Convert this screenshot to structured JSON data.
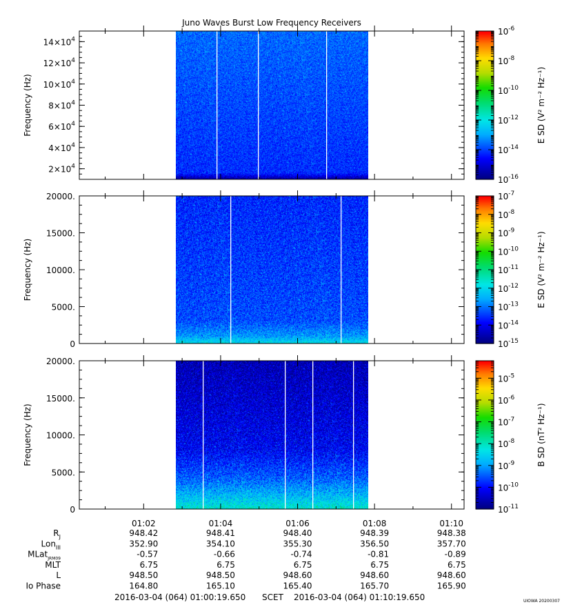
{
  "title": "Juno Waves Burst Low Frequency Receivers",
  "colors": {
    "background": "#ffffff",
    "axis": "#000000",
    "data_gap": "#ffffff"
  },
  "chart_data": [
    {
      "type": "heatmap",
      "panel": 1,
      "ylabel": "Frequency (Hz)",
      "ylim": [
        10000,
        150000
      ],
      "yticks": [
        {
          "value": 20000,
          "mant": "2×10",
          "exp": "4"
        },
        {
          "value": 40000,
          "mant": "4×10",
          "exp": "4"
        },
        {
          "value": 60000,
          "mant": "6×10",
          "exp": "4"
        },
        {
          "value": 80000,
          "mant": "8×10",
          "exp": "4"
        },
        {
          "value": 100000,
          "mant": "10×10",
          "exp": "4"
        },
        {
          "value": 120000,
          "mant": "12×10",
          "exp": "4"
        },
        {
          "value": 140000,
          "mant": "14×10",
          "exp": "4"
        }
      ],
      "xlim": [
        "01:00:19.650",
        "01:10:19.650"
      ],
      "data_time_range": [
        "01:02:50",
        "01:07:50"
      ],
      "gaps": [
        "01:03:54",
        "01:04:58",
        "01:06:45"
      ],
      "colorbar": {
        "label": "E SD (V² m⁻² Hz⁻¹)",
        "scale": "log",
        "range_exp": [
          -16,
          -6
        ],
        "ticks": [
          -16,
          -14,
          -12,
          -10,
          -8,
          -6
        ]
      },
      "intensity_profile": [
        {
          "f": 0.0,
          "exp": -15.6
        },
        {
          "f": 0.04,
          "exp": -14.2
        },
        {
          "f": 1.0,
          "exp": -13.6
        }
      ]
    },
    {
      "type": "heatmap",
      "panel": 2,
      "ylabel": "Frequency (Hz)",
      "ylim": [
        0,
        20000
      ],
      "yticks": [
        {
          "value": 0,
          "label": "0"
        },
        {
          "value": 5000,
          "label": "5000."
        },
        {
          "value": 10000,
          "label": "10000."
        },
        {
          "value": 15000,
          "label": "15000."
        },
        {
          "value": 20000,
          "label": "20000."
        }
      ],
      "xlim": [
        "01:00:19.650",
        "01:10:19.650"
      ],
      "data_time_range": [
        "01:02:50",
        "01:07:50"
      ],
      "gaps": [
        "01:04:15",
        "01:07:07"
      ],
      "colorbar": {
        "label": "E SD (V² m⁻² Hz⁻¹)",
        "scale": "log",
        "range_exp": [
          -15,
          -7
        ],
        "ticks": [
          -15,
          -14,
          -13,
          -12,
          -11,
          -10,
          -9,
          -8,
          -7
        ]
      },
      "intensity_profile": [
        {
          "f": 0.0,
          "exp": -11.9
        },
        {
          "f": 0.05,
          "exp": -12.7
        },
        {
          "f": 0.15,
          "exp": -13.3
        },
        {
          "f": 1.0,
          "exp": -13.6
        }
      ]
    },
    {
      "type": "heatmap",
      "panel": 3,
      "ylabel": "Frequency (Hz)",
      "ylim": [
        0,
        20000
      ],
      "yticks": [
        {
          "value": 0,
          "label": "0"
        },
        {
          "value": 5000,
          "label": "5000."
        },
        {
          "value": 10000,
          "label": "10000."
        },
        {
          "value": 15000,
          "label": "15000."
        },
        {
          "value": 20000,
          "label": "20000."
        }
      ],
      "xlim": [
        "01:00:19.650",
        "01:10:19.650"
      ],
      "data_time_range": [
        "01:02:50",
        "01:07:50"
      ],
      "gaps": [
        "01:03:32",
        "01:05:40",
        "01:06:23",
        "01:07:27"
      ],
      "colorbar": {
        "label": "B SD (nT² Hz⁻¹)",
        "scale": "log",
        "range_exp": [
          -11,
          -4.2
        ],
        "ticks": [
          -11,
          -10,
          -9,
          -8,
          -7,
          -6,
          -5
        ]
      },
      "intensity_profile": [
        {
          "f": 0.0,
          "exp": -8.1
        },
        {
          "f": 0.08,
          "exp": -8.7
        },
        {
          "f": 0.2,
          "exp": -9.4
        },
        {
          "f": 0.4,
          "exp": -10.1
        },
        {
          "f": 1.0,
          "exp": -10.6
        }
      ]
    }
  ],
  "xaxis": {
    "time_ticks": [
      "01:02",
      "01:04",
      "01:06",
      "01:08",
      "01:10"
    ],
    "ephemeris": [
      {
        "label": "R",
        "sub": "J",
        "values": [
          "948.42",
          "948.41",
          "948.40",
          "948.39",
          "948.38"
        ]
      },
      {
        "label": "Lon",
        "sub": "III",
        "values": [
          "352.90",
          "354.10",
          "355.30",
          "356.50",
          "357.70"
        ]
      },
      {
        "label": "MLat",
        "sub": "JRM09",
        "values": [
          "-0.57",
          "-0.66",
          "-0.74",
          "-0.81",
          "-0.89"
        ]
      },
      {
        "label": "MLT",
        "sub": "",
        "values": [
          "6.75",
          "6.75",
          "6.75",
          "6.75",
          "6.75"
        ]
      },
      {
        "label": "L",
        "sub": "",
        "values": [
          "948.50",
          "948.50",
          "948.60",
          "948.60",
          "948.60"
        ]
      },
      {
        "label": "Io Phase",
        "sub": "",
        "values": [
          "164.80",
          "165.10",
          "165.40",
          "165.70",
          "165.90"
        ]
      }
    ]
  },
  "footer": {
    "start": "2016-03-04 (064) 01:00:19.650",
    "scet": "SCET",
    "end": "2016-03-04 (064) 01:10:19.650",
    "stamp": "UIOWA 20200307"
  }
}
